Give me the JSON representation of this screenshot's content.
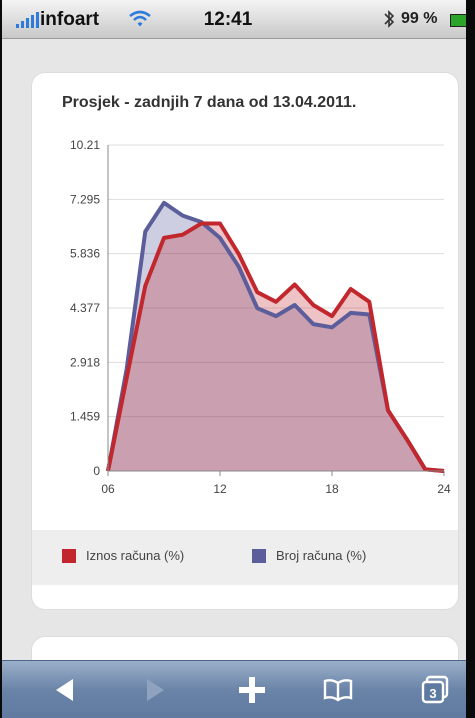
{
  "status_bar": {
    "carrier": "infoart",
    "time": "12:41",
    "battery_pct": "99 %"
  },
  "chart_data": {
    "type": "area",
    "title": "Prosjek - zadnjih 7 dana od 13.04.2011.",
    "x_ticks": [
      "06",
      "12",
      "18",
      "24"
    ],
    "y_ticks": [
      "10.21",
      "7.295",
      "5.836",
      "4.377",
      "2.918",
      "1.459",
      "0"
    ],
    "xlim": [
      6,
      24
    ],
    "x": [
      6,
      7,
      8,
      9,
      10,
      11,
      12,
      13,
      14,
      15,
      16,
      17,
      18,
      19,
      20,
      21,
      22,
      23,
      24
    ],
    "series": [
      {
        "name": "Iznos računa (%)",
        "color": "#c1272d",
        "values": [
          0.0,
          2.92,
          5.8,
          7.3,
          7.4,
          7.75,
          7.75,
          6.8,
          5.6,
          5.3,
          5.84,
          5.2,
          4.85,
          5.7,
          5.3,
          1.9,
          1.0,
          0.05,
          0.0
        ]
      },
      {
        "name": "Broj računa (%)",
        "color": "#5b5e9a",
        "values": [
          0.0,
          3.2,
          7.5,
          8.4,
          8.0,
          7.8,
          7.3,
          6.4,
          5.1,
          4.85,
          5.2,
          4.6,
          4.5,
          4.95,
          4.9,
          1.9,
          1.0,
          0.05,
          0.0
        ]
      }
    ],
    "legend_position": "bottom",
    "grid": "horizontal"
  },
  "toolbar": {
    "items": [
      "back-icon",
      "forward-icon",
      "add-icon",
      "bookmarks-icon",
      "pages-icon"
    ],
    "pages_count": "3"
  }
}
